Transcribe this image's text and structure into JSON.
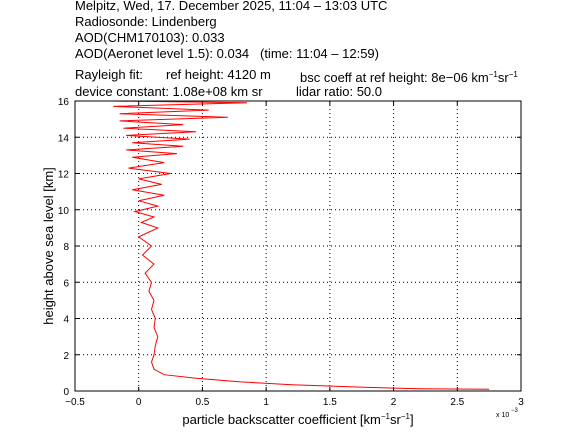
{
  "header": {
    "line1": "Melpitz, Wed, 17. December 2025, 11:04 – 13:03 UTC",
    "line2": "Radiosonde: Lindenberg",
    "line3": "AOD(CHM170103): 0.033",
    "line4": "AOD(Aeronet level 1.5): 0.034   (time: 11:04 – 12:59)",
    "rayleigh_fit": "Rayleigh fit:",
    "ref_height": "ref height: 4120 m",
    "bsc_prefix": "bsc coeff at ref height: 8e−06 km",
    "exp1": "−1",
    "sr": "sr",
    "device_constant": "device constant: 1.08e+08 km sr",
    "lidar_ratio": "lidar ratio: 50.0"
  },
  "chart_data": {
    "type": "line",
    "title": "",
    "xlabel": "particle backscatter coefficient [km−1sr−1]",
    "xlabel_parts": {
      "text": "particle backscatter coefficient [km",
      "sup1": "−1",
      "mid": "sr",
      "sup2": "−1",
      "end": "]"
    },
    "x_multiplier_label": "x 10",
    "x_multiplier_exp": "−3",
    "ylabel": "height above sea level [km]",
    "xlim": [
      -0.5,
      3
    ],
    "ylim": [
      0,
      16
    ],
    "xticks": [
      "−0.5",
      "0",
      "0.5",
      "1",
      "1.5",
      "2",
      "2.5",
      "3"
    ],
    "yticks": [
      "0",
      "2",
      "4",
      "6",
      "8",
      "10",
      "12",
      "14",
      "16"
    ],
    "grid": true,
    "line_color": "#ff0000",
    "series": [
      {
        "x": [
          2.75,
          2.2,
          1.8,
          1.2,
          0.8,
          0.45,
          0.2,
          0.12,
          0.1,
          0.12,
          0.13,
          0.15,
          0.12,
          0.13,
          0.1,
          0.12,
          0.08,
          0.1,
          0.05,
          0.12,
          0.03,
          0.1,
          0.0,
          0.15,
          0.02,
          0.12,
          -0.03,
          0.15,
          0.0,
          0.2,
          -0.05,
          0.18,
          0.0,
          0.25,
          -0.08,
          0.2,
          -0.05,
          0.3,
          -0.1,
          0.35,
          -0.05,
          0.4,
          -0.1,
          0.45,
          -0.12,
          0.35,
          -0.15,
          0.7,
          -0.15,
          0.55,
          -0.2,
          0.85,
          -0.2,
          0.9,
          -0.25,
          1.0,
          -0.3,
          1.1,
          -0.2,
          1.0,
          -0.25,
          1.15,
          -0.1
        ],
        "y": [
          0.1,
          0.12,
          0.2,
          0.35,
          0.5,
          0.7,
          0.9,
          1.2,
          1.6,
          2.0,
          2.5,
          3.0,
          3.5,
          4.0,
          4.5,
          5.0,
          5.5,
          6.0,
          6.5,
          7.0,
          7.5,
          8.0,
          8.5,
          9.0,
          9.3,
          9.6,
          9.9,
          10.2,
          10.5,
          10.8,
          11.1,
          11.4,
          11.7,
          12.0,
          12.3,
          12.6,
          12.9,
          13.1,
          13.3,
          13.5,
          13.7,
          13.9,
          14.1,
          14.3,
          14.5,
          14.7,
          14.9,
          15.1,
          15.3,
          15.5,
          15.7,
          15.9,
          16.0,
          16.0,
          16.0,
          16.0,
          16.0,
          16.0,
          16.0,
          16.0,
          16.0,
          16.0,
          16.0
        ]
      }
    ]
  }
}
